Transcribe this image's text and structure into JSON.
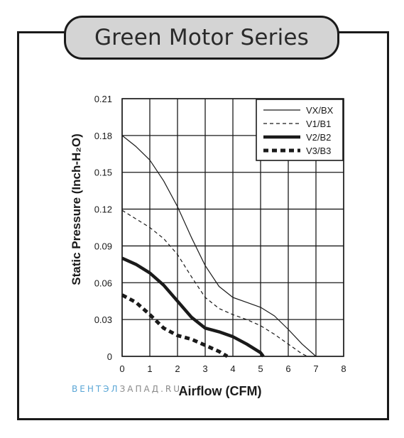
{
  "title": "Green Motor Series",
  "watermark": {
    "part1": "ВЕНТЭЛ",
    "part2": "ЗАПАД",
    "part3": ".RU"
  },
  "colors": {
    "line": "#1a1a1a",
    "grid": "#1a1a1a",
    "badge_fill": "#d4d4d4",
    "watermark_blue": "#5aa6d6",
    "watermark_gray": "#8a8a8a"
  },
  "chart_data": {
    "type": "line",
    "xlabel": "Airflow (CFM)",
    "ylabel": "Static Pressure (Inch-H₂O)",
    "xlim": [
      0,
      8
    ],
    "ylim": [
      0,
      0.21
    ],
    "x_ticks": [
      "0",
      "1",
      "2",
      "3",
      "4",
      "5",
      "6",
      "7",
      "8"
    ],
    "y_ticks": [
      "0",
      "0.03",
      "0.06",
      "0.09",
      "0.12",
      "0.15",
      "0.18",
      "0.21"
    ],
    "grid": true,
    "legend_position": "top-right",
    "series": [
      {
        "name": "VX/BX",
        "style": "thin-solid",
        "points": [
          [
            0,
            0.18
          ],
          [
            0.5,
            0.171
          ],
          [
            1,
            0.16
          ],
          [
            1.5,
            0.143
          ],
          [
            2,
            0.122
          ],
          [
            2.5,
            0.097
          ],
          [
            3,
            0.074
          ],
          [
            3.5,
            0.057
          ],
          [
            4,
            0.048
          ],
          [
            4.5,
            0.044
          ],
          [
            5,
            0.04
          ],
          [
            5.5,
            0.033
          ],
          [
            6,
            0.022
          ],
          [
            6.5,
            0.01
          ],
          [
            7,
            0
          ]
        ]
      },
      {
        "name": "V1/B1",
        "style": "thin-dashed",
        "points": [
          [
            0,
            0.119
          ],
          [
            0.5,
            0.112
          ],
          [
            1,
            0.105
          ],
          [
            1.5,
            0.096
          ],
          [
            2,
            0.083
          ],
          [
            2.5,
            0.065
          ],
          [
            3,
            0.048
          ],
          [
            3.5,
            0.039
          ],
          [
            4,
            0.034
          ],
          [
            4.5,
            0.03
          ],
          [
            5,
            0.025
          ],
          [
            5.5,
            0.018
          ],
          [
            6,
            0.01
          ],
          [
            6.5,
            0.002
          ],
          [
            6.7,
            0
          ]
        ]
      },
      {
        "name": "V2/B2",
        "style": "thick-solid",
        "points": [
          [
            0,
            0.08
          ],
          [
            0.5,
            0.075
          ],
          [
            1,
            0.068
          ],
          [
            1.5,
            0.058
          ],
          [
            2,
            0.045
          ],
          [
            2.5,
            0.032
          ],
          [
            3,
            0.023
          ],
          [
            3.5,
            0.02
          ],
          [
            4,
            0.016
          ],
          [
            4.5,
            0.01
          ],
          [
            5,
            0.003
          ],
          [
            5.1,
            0
          ]
        ]
      },
      {
        "name": "V3/B3",
        "style": "thick-dotted",
        "points": [
          [
            0,
            0.05
          ],
          [
            0.5,
            0.044
          ],
          [
            1,
            0.034
          ],
          [
            1.5,
            0.023
          ],
          [
            2,
            0.017
          ],
          [
            2.5,
            0.014
          ],
          [
            3,
            0.009
          ],
          [
            3.5,
            0.004
          ],
          [
            3.8,
            0
          ]
        ]
      }
    ]
  }
}
